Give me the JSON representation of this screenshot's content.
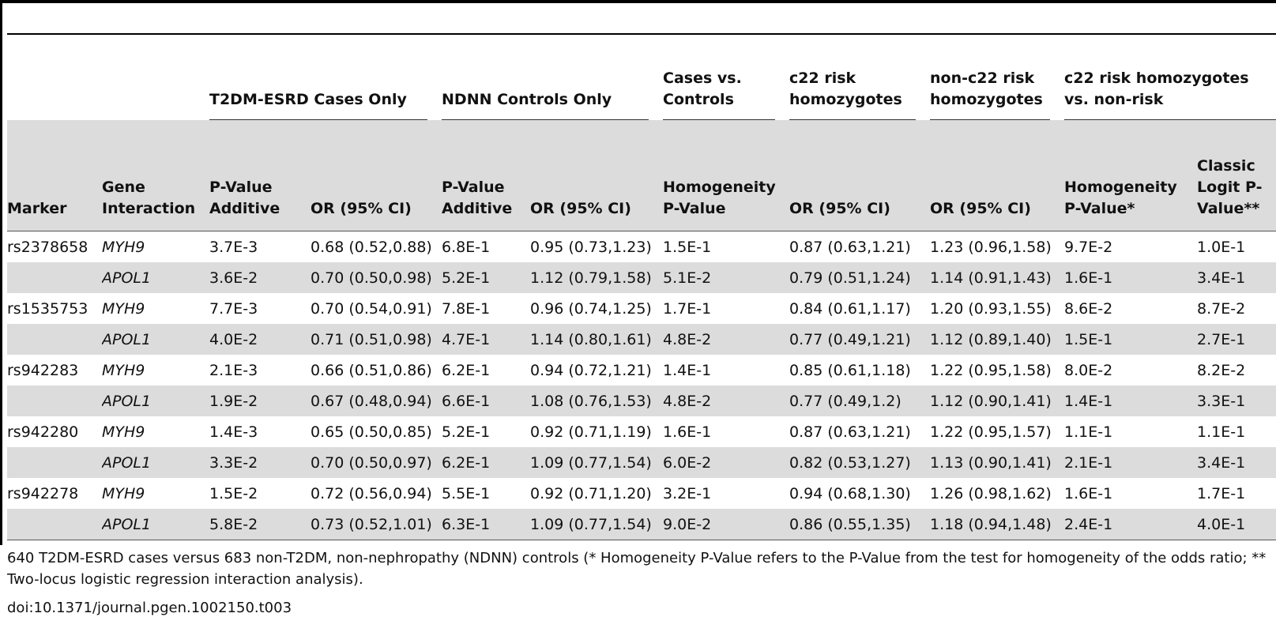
{
  "groups": {
    "cases_only": "T2DM-ESRD Cases Only",
    "controls_only": "NDNN Controls Only",
    "cases_vs_controls": "Cases vs. Controls",
    "c22_risk_hom": "c22 risk homozygotes",
    "non_c22_risk_hom": "non-c22 risk homozygotes",
    "c22_vs_nonrisk": "c22 risk homozygotes vs. non-risk"
  },
  "columns": [
    "Marker",
    "Gene Interaction",
    "P-Value Additive",
    "OR (95% CI)",
    "P-Value Additive",
    "OR (95% CI)",
    "Homogeneity P-Value",
    "OR (95% CI)",
    "OR (95% CI)",
    "Homogeneity P-Value*",
    "Classic Logit P-Value**"
  ],
  "rows": [
    [
      "rs2378658",
      "MYH9",
      "3.7E-3",
      "0.68 (0.52,0.88)",
      "6.8E-1",
      "0.95 (0.73,1.23)",
      "1.5E-1",
      "0.87 (0.63,1.21)",
      "1.23 (0.96,1.58)",
      "9.7E-2",
      "1.0E-1"
    ],
    [
      "",
      "APOL1",
      "3.6E-2",
      "0.70 (0.50,0.98)",
      "5.2E-1",
      "1.12 (0.79,1.58)",
      "5.1E-2",
      "0.79 (0.51,1.24)",
      "1.14 (0.91,1.43)",
      "1.6E-1",
      "3.4E-1"
    ],
    [
      "rs1535753",
      "MYH9",
      "7.7E-3",
      "0.70 (0.54,0.91)",
      "7.8E-1",
      "0.96 (0.74,1.25)",
      "1.7E-1",
      "0.84 (0.61,1.17)",
      "1.20 (0.93,1.55)",
      "8.6E-2",
      "8.7E-2"
    ],
    [
      "",
      "APOL1",
      "4.0E-2",
      "0.71 (0.51,0.98)",
      "4.7E-1",
      "1.14 (0.80,1.61)",
      "4.8E-2",
      "0.77 (0.49,1.21)",
      "1.12 (0.89,1.40)",
      "1.5E-1",
      "2.7E-1"
    ],
    [
      "rs942283",
      "MYH9",
      "2.1E-3",
      "0.66 (0.51,0.86)",
      "6.2E-1",
      "0.94 (0.72,1.21)",
      "1.4E-1",
      "0.85 (0.61,1.18)",
      "1.22 (0.95,1.58)",
      "8.0E-2",
      "8.2E-2"
    ],
    [
      "",
      "APOL1",
      "1.9E-2",
      "0.67 (0.48,0.94)",
      "6.6E-1",
      "1.08 (0.76,1.53)",
      "4.8E-2",
      "0.77 (0.49,1.2)",
      "1.12 (0.90,1.41)",
      "1.4E-1",
      "3.3E-1"
    ],
    [
      "rs942280",
      "MYH9",
      "1.4E-3",
      "0.65 (0.50,0.85)",
      "5.2E-1",
      "0.92 (0.71,1.19)",
      "1.6E-1",
      "0.87 (0.63,1.21)",
      "1.22 (0.95,1.57)",
      "1.1E-1",
      "1.1E-1"
    ],
    [
      "",
      "APOL1",
      "3.3E-2",
      "0.70 (0.50,0.97)",
      "6.2E-1",
      "1.09 (0.77,1.54)",
      "6.0E-2",
      "0.82 (0.53,1.27)",
      "1.13 (0.90,1.41)",
      "2.1E-1",
      "3.4E-1"
    ],
    [
      "rs942278",
      "MYH9",
      "1.5E-2",
      "0.72 (0.56,0.94)",
      "5.5E-1",
      "0.92 (0.71,1.20)",
      "3.2E-1",
      "0.94 (0.68,1.30)",
      "1.26 (0.98,1.62)",
      "1.6E-1",
      "1.7E-1"
    ],
    [
      "",
      "APOL1",
      "5.8E-2",
      "0.73 (0.52,1.01)",
      "6.3E-1",
      "1.09 (0.77,1.54)",
      "9.0E-2",
      "0.86 (0.55,1.35)",
      "1.18 (0.94,1.48)",
      "2.4E-1",
      "4.0E-1"
    ]
  ],
  "footnote": "640 T2DM-ESRD cases versus 683 non-T2DM, non-nephropathy (NDNN) controls (* Homogeneity P-Value refers to the P-Value from the test for homogeneity of the odds ratio; ** Two-locus logistic regression interaction analysis).",
  "doi": "doi:10.1371/journal.pgen.1002150.t003"
}
